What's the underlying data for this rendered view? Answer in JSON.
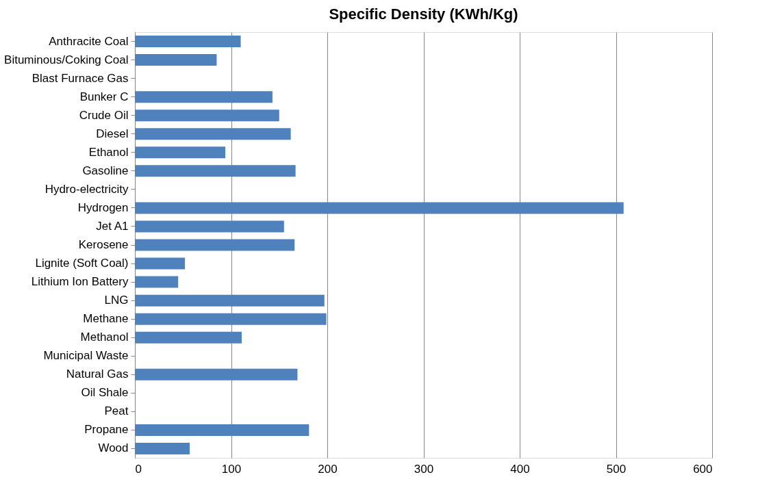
{
  "chart_data": {
    "type": "bar",
    "orientation": "horizontal",
    "title": "Specific Density (KWh/Kg)",
    "categories": [
      "Anthracite Coal",
      "Bituminous/Coking Coal",
      "Blast Furnace Gas",
      "Bunker C",
      "Crude Oil",
      "Diesel",
      "Ethanol",
      "Gasoline",
      "Hydro-electricity",
      "Hydrogen",
      "Jet A1",
      "Kerosene",
      "Lignite (Soft Coal)",
      "Lithium Ion Battery",
      "LNG",
      "Methane",
      "Methanol",
      "Municipal Waste",
      "Natural Gas",
      "Oil Shale",
      "Peat",
      "Propane",
      "Wood"
    ],
    "values": [
      110,
      85,
      null,
      143,
      150,
      162,
      94,
      167,
      null,
      508,
      155,
      166,
      52,
      45,
      197,
      199,
      111,
      null,
      169,
      null,
      null,
      181,
      57
    ],
    "color": "#4f81bd",
    "xlim": [
      0,
      600
    ],
    "xticks": [
      0,
      100,
      200,
      300,
      400,
      500,
      600
    ],
    "grid": "x"
  }
}
